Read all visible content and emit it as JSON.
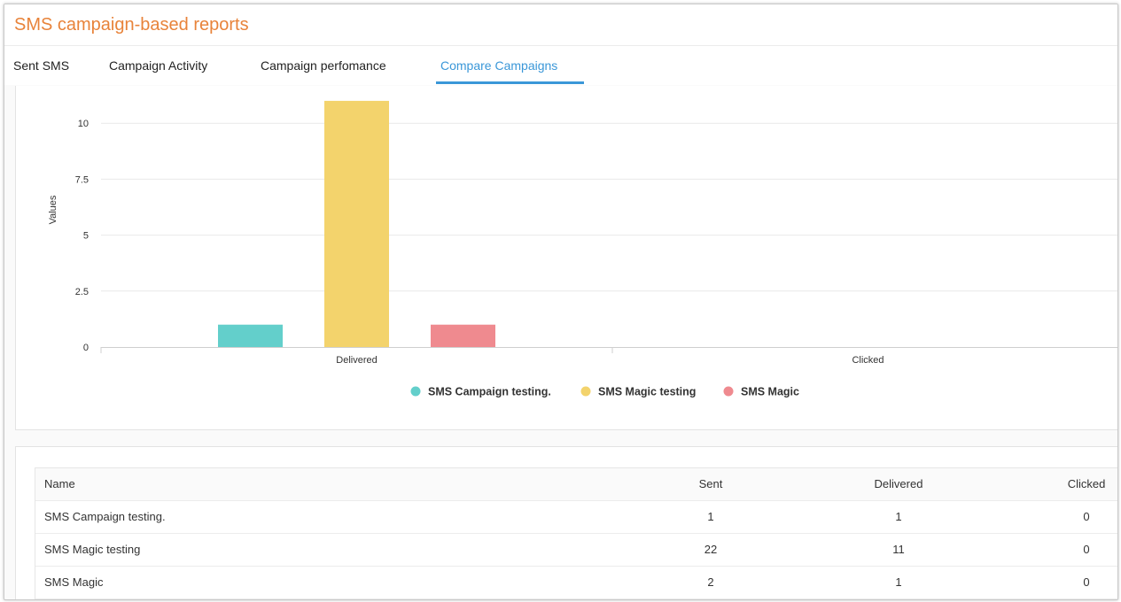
{
  "page": {
    "title": "SMS campaign-based reports"
  },
  "tabs": [
    {
      "label": "Sent SMS",
      "active": false
    },
    {
      "label": "Campaign Activity",
      "active": false
    },
    {
      "label": "Campaign perfomance",
      "active": false
    },
    {
      "label": "Compare Campaigns",
      "active": true
    }
  ],
  "chart_data": {
    "type": "bar",
    "ylabel": "Values",
    "xlabel": "",
    "ylim": [
      0,
      11
    ],
    "yticks": [
      "0",
      "2.5",
      "5",
      "7.5",
      "10"
    ],
    "categories": [
      "Delivered",
      "Clicked"
    ],
    "series": [
      {
        "name": "SMS Campaign testing.",
        "color": "#63cfcb",
        "values": [
          1,
          0
        ]
      },
      {
        "name": "SMS Magic testing",
        "color": "#f3d36c",
        "values": [
          11,
          0
        ]
      },
      {
        "name": "SMS Magic",
        "color": "#ef8a8f",
        "values": [
          1,
          0
        ]
      }
    ],
    "legend_position": "bottom",
    "grid": true
  },
  "table": {
    "headers": {
      "name": "Name",
      "sent": "Sent",
      "delivered": "Delivered",
      "clicked": "Clicked"
    },
    "rows": [
      {
        "name": "SMS Campaign testing.",
        "sent": "1",
        "delivered": "1",
        "clicked": "0"
      },
      {
        "name": "SMS Magic testing",
        "sent": "22",
        "delivered": "11",
        "clicked": "0"
      },
      {
        "name": "SMS Magic",
        "sent": "2",
        "delivered": "1",
        "clicked": "0"
      }
    ]
  }
}
